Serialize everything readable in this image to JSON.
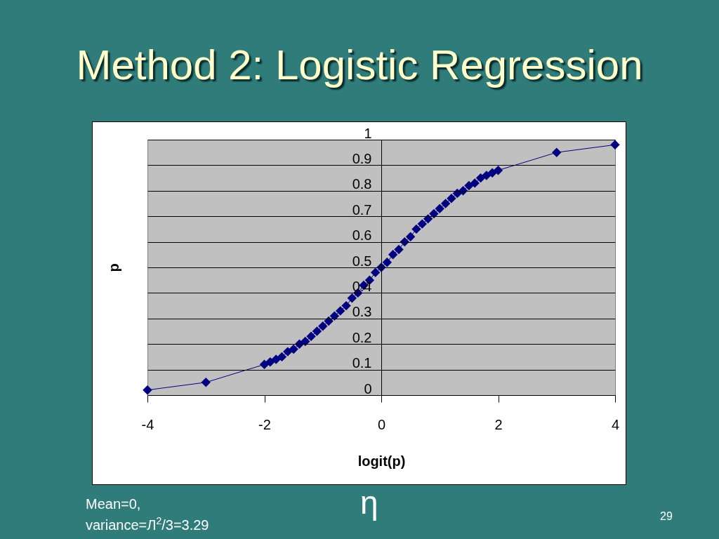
{
  "chart_data": {
    "type": "line",
    "title": "Method 2: Logistic Regression",
    "xlabel": "logit(p)",
    "ylabel": "p",
    "x": [
      -4,
      -3,
      -2,
      -1.9,
      -1.8,
      -1.7,
      -1.6,
      -1.5,
      -1.4,
      -1.3,
      -1.2,
      -1.1,
      -1,
      -0.9,
      -0.8,
      -0.7,
      -0.6,
      -0.5,
      -0.4,
      -0.3,
      -0.2,
      -0.1,
      0,
      0.1,
      0.2,
      0.3,
      0.4,
      0.5,
      0.6,
      0.7,
      0.8,
      0.9,
      1,
      1.1,
      1.2,
      1.3,
      1.4,
      1.5,
      1.6,
      1.7,
      1.8,
      1.9,
      2,
      3,
      4
    ],
    "series": [
      {
        "color": "#000080",
        "values": [
          0.02,
          0.05,
          0.12,
          0.13,
          0.14,
          0.15,
          0.17,
          0.18,
          0.2,
          0.21,
          0.23,
          0.25,
          0.27,
          0.29,
          0.31,
          0.33,
          0.35,
          0.38,
          0.4,
          0.43,
          0.45,
          0.48,
          0.5,
          0.52,
          0.55,
          0.57,
          0.6,
          0.62,
          0.65,
          0.67,
          0.69,
          0.71,
          0.73,
          0.75,
          0.77,
          0.79,
          0.8,
          0.82,
          0.83,
          0.85,
          0.86,
          0.87,
          0.88,
          0.95,
          0.98
        ]
      }
    ],
    "xlim": [
      -4,
      4
    ],
    "xticks": [
      -4,
      -2,
      0,
      2,
      4
    ],
    "ylim": [
      0,
      1
    ],
    "yticks": [
      0,
      0.1,
      0.2,
      0.3,
      0.4,
      0.5,
      0.6,
      0.7,
      0.8,
      0.9,
      1
    ],
    "grid": "y",
    "marker": "diamond",
    "line_style": "solid",
    "annotations": [
      "Mean=0, variance=Л$^{2}$/3=3.29",
      "η",
      "29"
    ]
  }
}
